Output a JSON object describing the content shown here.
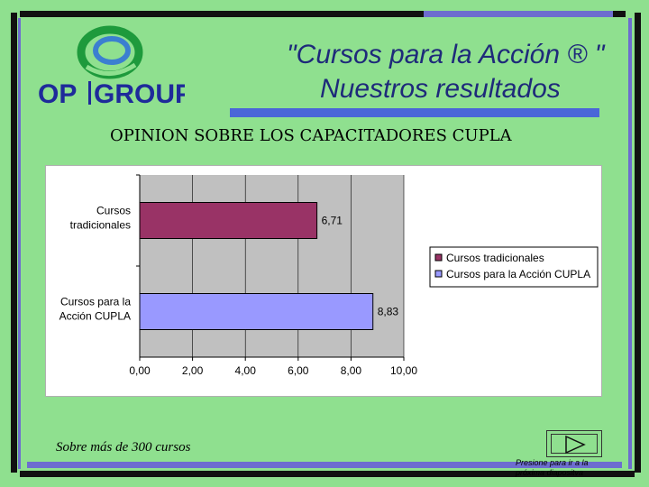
{
  "logo": {
    "text_op": "OP",
    "text_group": "GROUP"
  },
  "header": {
    "title_line1": "\"Cursos para la Acción ® \"",
    "title_line2": "Nuestros resultados",
    "chart_heading": "OPINION SOBRE LOS CAPACITADORES CUPLA"
  },
  "footer": {
    "note": "Sobre más de 300 cursos",
    "next_hint": "Presione para ir a la próxima diapositva"
  },
  "colors": {
    "background": "#8fe08f",
    "series_traditional": "#993366",
    "series_cupla": "#9999ff",
    "plot_area": "#c0c0c0",
    "title": "#1e2a7a"
  },
  "chart_data": {
    "type": "bar",
    "orientation": "horizontal",
    "categories": [
      "Cursos tradicionales",
      "Cursos para la Acción CUPLA"
    ],
    "category_label_lines": [
      [
        "Cursos",
        "tradicionales"
      ],
      [
        "Cursos para la",
        "Acción CUPLA"
      ]
    ],
    "series": [
      {
        "name": "Cursos tradicionales",
        "values": [
          6.71,
          null
        ],
        "labels": [
          "6,71",
          ""
        ],
        "color": "#993366"
      },
      {
        "name": "Cursos para la Acción CUPLA",
        "values": [
          null,
          8.83
        ],
        "labels": [
          "",
          "8,83"
        ],
        "color": "#9999ff"
      }
    ],
    "x_ticks": [
      0,
      2,
      4,
      6,
      8,
      10
    ],
    "x_tick_labels": [
      "0,00",
      "2,00",
      "4,00",
      "6,00",
      "8,00",
      "10,00"
    ],
    "xlim": [
      0,
      10
    ],
    "grid": true,
    "legend_position": "right"
  }
}
